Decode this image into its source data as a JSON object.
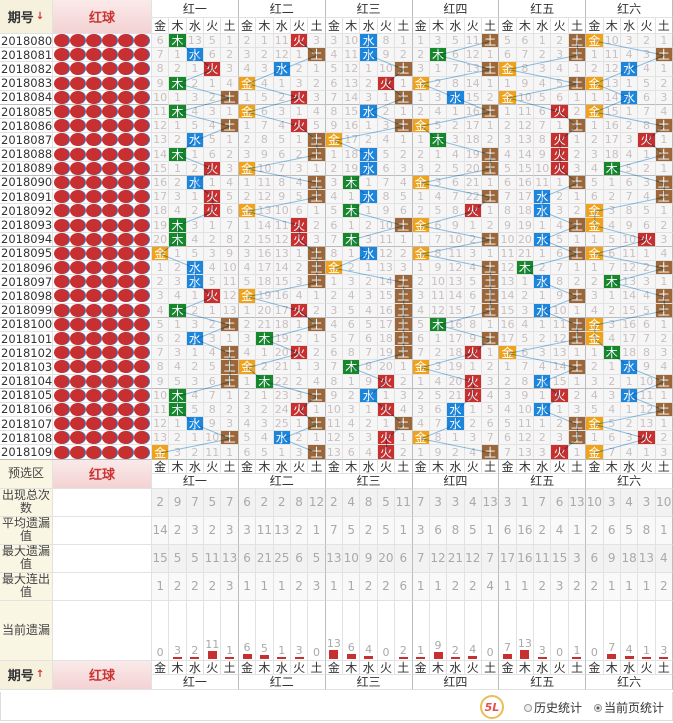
{
  "header": {
    "issue_label": "期号",
    "sort_desc_icon": "arrow-down-icon",
    "sort_asc_icon": "arrow-up-icon",
    "ball_label": "红球"
  },
  "groups": [
    "红一",
    "红二",
    "红三",
    "红四",
    "红五",
    "红六"
  ],
  "elements": [
    "金",
    "木",
    "水",
    "火",
    "土"
  ],
  "element_colors": {
    "金": "#f0a21a",
    "木": "#17872c",
    "水": "#1b86dc",
    "火": "#c8302f",
    "土": "#9b673a"
  },
  "line_color": "#8ec3e8",
  "first_row_omission": [
    [
      6,
      0,
      13,
      5,
      1
    ],
    [
      2,
      1,
      11,
      0,
      3
    ],
    [
      3,
      10,
      0,
      8,
      1
    ],
    [
      1,
      3,
      5,
      11,
      0
    ],
    [
      5,
      6,
      1,
      2,
      0
    ],
    [
      0,
      10,
      3,
      2,
      1
    ]
  ],
  "rows": [
    {
      "issue": "2018080",
      "hits": [
        "木",
        "火",
        "水",
        "土",
        "土",
        "金"
      ]
    },
    {
      "issue": "2018081",
      "hits": [
        "水",
        "土",
        "水",
        "木",
        "土",
        "土"
      ]
    },
    {
      "issue": "2018082",
      "hits": [
        "火",
        "水",
        "土",
        "土",
        "金",
        "水"
      ]
    },
    {
      "issue": "2018083",
      "hits": [
        "木",
        "金",
        "火",
        "金",
        "土",
        "金"
      ]
    },
    {
      "issue": "2018084",
      "hits": [
        "土",
        "火",
        "土",
        "水",
        "金",
        "水"
      ]
    },
    {
      "issue": "2018085",
      "hits": [
        "木",
        "金",
        "水",
        "土",
        "火",
        "金"
      ]
    },
    {
      "issue": "2018086",
      "hits": [
        "土",
        "火",
        "土",
        "金",
        "土",
        "土"
      ]
    },
    {
      "issue": "2018087",
      "hits": [
        "水",
        "土",
        "金",
        "木",
        "火",
        "火"
      ]
    },
    {
      "issue": "2018088",
      "hits": [
        "木",
        "土",
        "水",
        "土",
        "火",
        "土"
      ]
    },
    {
      "issue": "2018089",
      "hits": [
        "火",
        "金",
        "水",
        "土",
        "火",
        "木"
      ]
    },
    {
      "issue": "2018090",
      "hits": [
        "水",
        "土",
        "木",
        "金",
        "土",
        "土"
      ]
    },
    {
      "issue": "2018091",
      "hits": [
        "火",
        "土",
        "水",
        "土",
        "水",
        "土"
      ]
    },
    {
      "issue": "2018092",
      "hits": [
        "火",
        "金",
        "木",
        "火",
        "水",
        "金"
      ]
    },
    {
      "issue": "2018093",
      "hits": [
        "木",
        "火",
        "土",
        "金",
        "土",
        "金"
      ]
    },
    {
      "issue": "2018094",
      "hits": [
        "木",
        "火",
        "木",
        "土",
        "水",
        "火"
      ]
    },
    {
      "issue": "2018095",
      "hits": [
        "金",
        "土",
        "水",
        "金",
        "土",
        "金"
      ]
    },
    {
      "issue": "2018096",
      "hits": [
        "水",
        "土",
        "金",
        "土",
        "木",
        "土"
      ]
    },
    {
      "issue": "2018097",
      "hits": [
        "水",
        "土",
        "土",
        "土",
        "水",
        "木"
      ]
    },
    {
      "issue": "2018098",
      "hits": [
        "火",
        "金",
        "土",
        "土",
        "土",
        "土"
      ]
    },
    {
      "issue": "2018099",
      "hits": [
        "木",
        "火",
        "土",
        "土",
        "水",
        "土"
      ]
    },
    {
      "issue": "2018100",
      "hits": [
        "土",
        "土",
        "土",
        "木",
        "土",
        "金"
      ]
    },
    {
      "issue": "2018101",
      "hits": [
        "水",
        "木",
        "土",
        "土",
        "土",
        "金"
      ]
    },
    {
      "issue": "2018102",
      "hits": [
        "土",
        "火",
        "土",
        "火",
        "金",
        "木"
      ]
    },
    {
      "issue": "2018103",
      "hits": [
        "土",
        "金",
        "木",
        "金",
        "土",
        "水"
      ]
    },
    {
      "issue": "2018104",
      "hits": [
        "土",
        "木",
        "火",
        "火",
        "水",
        "土"
      ]
    },
    {
      "issue": "2018105",
      "hits": [
        "木",
        "土",
        "水",
        "火",
        "火",
        "水"
      ]
    },
    {
      "issue": "2018106",
      "hits": [
        "木",
        "火",
        "火",
        "水",
        "水",
        "土"
      ]
    },
    {
      "issue": "2018107",
      "hits": [
        "水",
        "土",
        "土",
        "水",
        "土",
        "金"
      ]
    },
    {
      "issue": "2018108",
      "hits": [
        "土",
        "水",
        "火",
        "金",
        "土",
        "火"
      ]
    },
    {
      "issue": "2018109",
      "hits": [
        "金",
        "土",
        "火",
        "土",
        "火",
        "金"
      ]
    }
  ],
  "preselect": {
    "label": "预选区",
    "ball_label": "红球"
  },
  "stats": [
    {
      "label": "出现总次数",
      "values": [
        2,
        9,
        7,
        5,
        7,
        6,
        2,
        2,
        8,
        12,
        2,
        4,
        8,
        5,
        11,
        7,
        3,
        3,
        4,
        13,
        3,
        1,
        7,
        6,
        13,
        10,
        3,
        4,
        3,
        10
      ]
    },
    {
      "label": "平均遗漏值",
      "values": [
        14,
        2,
        3,
        2,
        3,
        3,
        11,
        13,
        2,
        1,
        7,
        5,
        2,
        5,
        1,
        3,
        6,
        8,
        5,
        1,
        6,
        16,
        2,
        4,
        1,
        2,
        6,
        5,
        8,
        1
      ]
    },
    {
      "label": "最大遗漏值",
      "values": [
        15,
        5,
        5,
        11,
        13,
        6,
        21,
        25,
        6,
        5,
        13,
        10,
        9,
        20,
        6,
        7,
        12,
        21,
        12,
        7,
        17,
        16,
        11,
        15,
        3,
        6,
        9,
        18,
        13,
        4
      ]
    },
    {
      "label": "最大连出值",
      "values": [
        1,
        2,
        2,
        2,
        3,
        1,
        1,
        1,
        2,
        3,
        1,
        1,
        2,
        2,
        6,
        1,
        1,
        2,
        2,
        4,
        1,
        1,
        2,
        3,
        2,
        2,
        1,
        1,
        1,
        2
      ]
    }
  ],
  "current_omission": {
    "label": "当前遗漏",
    "values": [
      0,
      3,
      2,
      11,
      1,
      6,
      5,
      1,
      3,
      0,
      13,
      6,
      4,
      0,
      2,
      1,
      9,
      2,
      4,
      0,
      7,
      13,
      3,
      0,
      1,
      0,
      7,
      4,
      1,
      3
    ]
  },
  "footer_header": {
    "issue_label": "期号",
    "ball_label": "红球"
  },
  "footer": {
    "history_stats": "历史统计",
    "history_selected": false,
    "page_stats": "当前页统计",
    "page_selected": true
  },
  "logo_text": "5L"
}
